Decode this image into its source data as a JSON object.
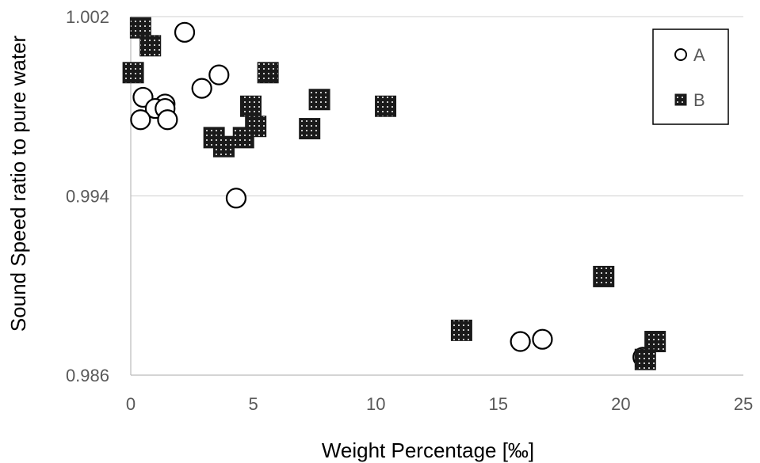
{
  "chart_data": {
    "type": "scatter",
    "xlabel": "Weight Percentage [‰]",
    "ylabel": "Sound Speed ratio to pure water",
    "xlim": [
      0,
      25
    ],
    "ylim": [
      0.986,
      1.002
    ],
    "x_ticks": [
      0,
      5,
      10,
      15,
      20,
      25
    ],
    "y_ticks": [
      0.986,
      0.994,
      1.002
    ],
    "x_tick_labels": [
      "0",
      "5",
      "10",
      "15",
      "20",
      "25"
    ],
    "y_tick_labels": [
      "0.986",
      "0.994",
      "1.002"
    ],
    "grid": "horizontal",
    "legend_position": "top-right",
    "series": [
      {
        "name": "A",
        "marker": "open-circle",
        "color": "#000000",
        "points": [
          [
            2.2,
            1.0013
          ],
          [
            3.6,
            0.9994
          ],
          [
            2.9,
            0.9988
          ],
          [
            0.5,
            0.9984
          ],
          [
            1.4,
            0.9981
          ],
          [
            1.0,
            0.9979
          ],
          [
            1.4,
            0.9979
          ],
          [
            0.4,
            0.9974
          ],
          [
            1.5,
            0.9974
          ],
          [
            4.3,
            0.9939
          ],
          [
            15.9,
            0.9875
          ],
          [
            16.8,
            0.9876
          ],
          [
            20.9,
            0.9868
          ]
        ]
      },
      {
        "name": "B",
        "marker": "dotted-square",
        "color": "#1a1a1a",
        "points": [
          [
            0.4,
            1.0015
          ],
          [
            0.8,
            1.0007
          ],
          [
            0.1,
            0.9995
          ],
          [
            5.6,
            0.9995
          ],
          [
            7.7,
            0.9983
          ],
          [
            10.4,
            0.998
          ],
          [
            4.9,
            0.998
          ],
          [
            5.1,
            0.9971
          ],
          [
            7.3,
            0.997
          ],
          [
            3.4,
            0.9966
          ],
          [
            4.6,
            0.9966
          ],
          [
            3.8,
            0.9962
          ],
          [
            19.3,
            0.9904
          ],
          [
            13.5,
            0.988
          ],
          [
            21.4,
            0.9875
          ],
          [
            21.0,
            0.9867
          ]
        ]
      }
    ]
  }
}
